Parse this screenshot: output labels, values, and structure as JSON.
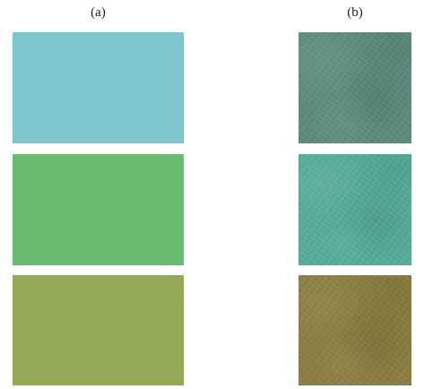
{
  "labels": {
    "a": "(a)",
    "b": "(b)"
  },
  "swatches": {
    "a": [
      {
        "color": "#7cc6cc"
      },
      {
        "color": "#6abc72"
      },
      {
        "color": "#93a955"
      }
    ],
    "b": [
      {
        "color": "#5e8c7f"
      },
      {
        "color": "#56ad9a"
      },
      {
        "color": "#8c7e3f"
      }
    ]
  }
}
